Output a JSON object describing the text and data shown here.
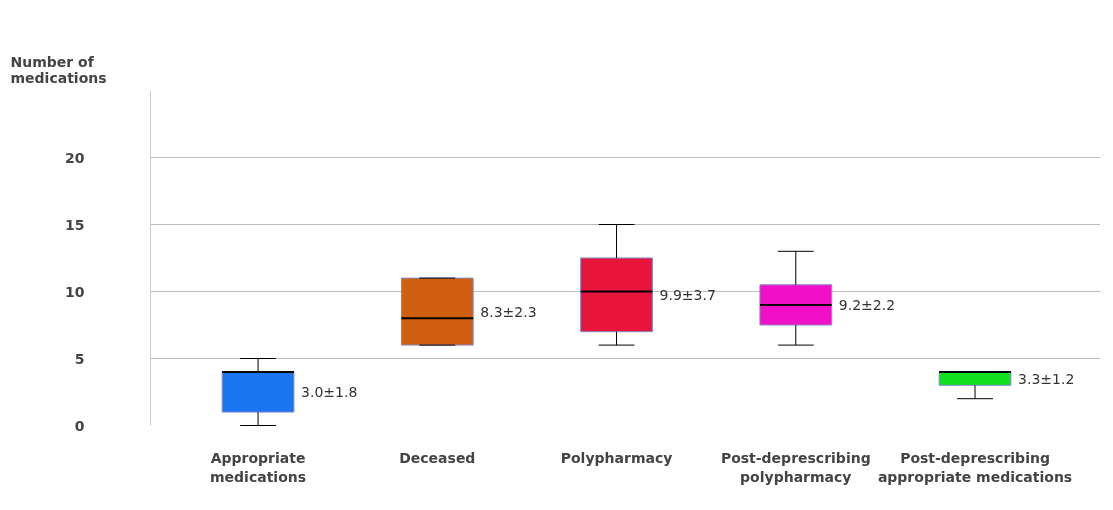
{
  "chart_data": {
    "type": "box",
    "ylabel": "Number of medications",
    "categories": [
      "Appropriate\nmedications",
      "Deceased",
      "Polypharmacy",
      "Post-deprescribing\npolypharmacy",
      "Post-deprescribing\nappropriate medications"
    ],
    "colors": [
      "#1a75f0",
      "#d06010",
      "#e8143c",
      "#f010c8",
      "#10e020"
    ],
    "boxes": [
      {
        "low": 0,
        "q1": 1,
        "median": 4,
        "q3": 4,
        "high": 5
      },
      {
        "low": 6,
        "q1": 6,
        "median": 8,
        "q3": 11,
        "high": 11
      },
      {
        "low": 6,
        "q1": 7,
        "median": 10,
        "q3": 12.5,
        "high": 15
      },
      {
        "low": 6,
        "q1": 7.5,
        "median": 9,
        "q3": 10.5,
        "high": 13
      },
      {
        "low": 2,
        "q1": 3,
        "median": 4,
        "q3": 4,
        "high": 4
      }
    ],
    "annotations": [
      "3.0±1.8",
      "8.3±2.3",
      "9.9±3.7",
      "9.2±2.2",
      "3.3±1.2"
    ],
    "ylim": [
      0,
      25
    ],
    "yticks": [
      0,
      5,
      10,
      15,
      20
    ],
    "grid": "y"
  }
}
